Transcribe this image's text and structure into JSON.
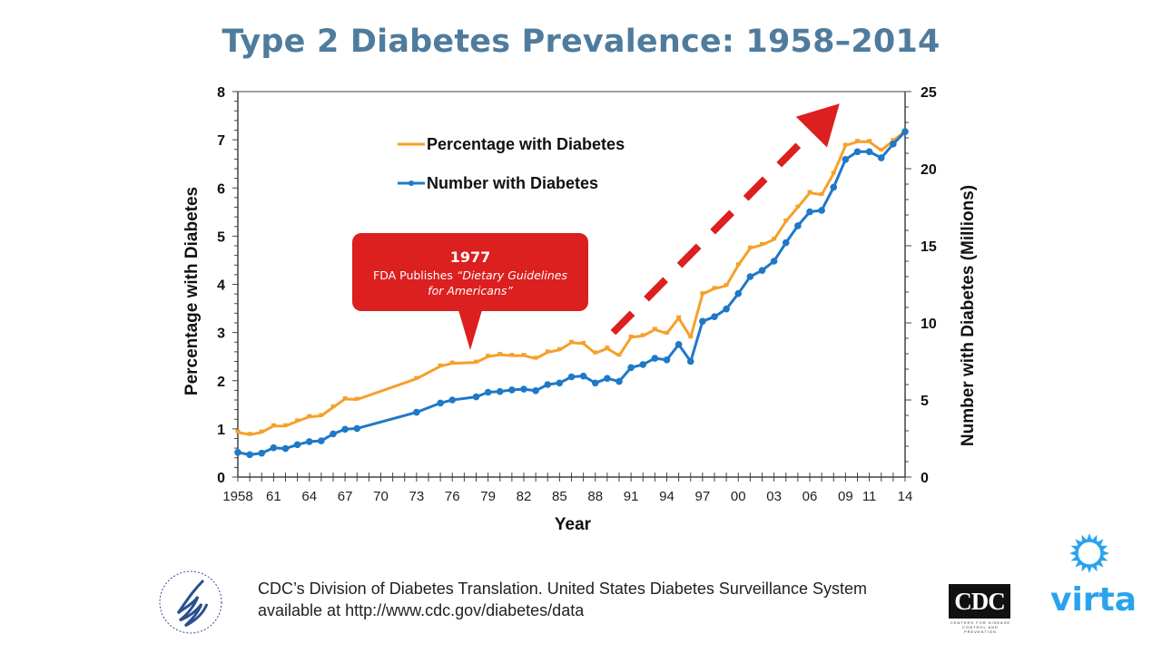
{
  "title": "Type 2 Diabetes Prevalence: 1958–2014",
  "callout": {
    "year": "1977",
    "text_plain": "FDA Publishes ",
    "text_italic_1": "“Dietary Guidelines",
    "text_italic_2": "for Americans”"
  },
  "citation": {
    "line1": "CDC’s Division of Diabetes Translation. United States Diabetes Surveillance System",
    "line2": "available at http://www.cdc.gov/diabetes/data"
  },
  "logos": {
    "hhs": "hhs-eagle-logo",
    "cdc": {
      "text": "CDC",
      "subtitle": "CENTERS FOR DISEASE CONTROL AND PREVENTION"
    },
    "virta": {
      "text": "virta",
      "color": "#29a3ee"
    }
  },
  "chart_data": {
    "type": "line",
    "title": "",
    "xlabel": "Year",
    "ylabel": "Percentage with Diabetes",
    "y2label": "Number with Diabetes (Millions)",
    "xlim": [
      1958,
      2014
    ],
    "ylim": [
      0,
      8
    ],
    "y2lim": [
      0,
      25
    ],
    "xtick_labels": [
      "1958",
      "61",
      "64",
      "67",
      "70",
      "73",
      "76",
      "79",
      "82",
      "85",
      "88",
      "91",
      "94",
      "97",
      "00",
      "03",
      "06",
      "09",
      "11",
      "14"
    ],
    "xtick_values": [
      1958,
      1961,
      1964,
      1967,
      1970,
      1973,
      1976,
      1979,
      1982,
      1985,
      1988,
      1991,
      1994,
      1997,
      2000,
      2003,
      2006,
      2009,
      2011,
      2014
    ],
    "ytick_labels": [
      "0",
      "1",
      "2",
      "3",
      "4",
      "5",
      "6",
      "7",
      "8"
    ],
    "y2tick_labels": [
      "0",
      "5",
      "10",
      "15",
      "20",
      "25"
    ],
    "legend": {
      "position": "top-left",
      "entries": [
        "Percentage with Diabetes",
        "Number with Diabetes"
      ]
    },
    "grid": false,
    "colors": {
      "percentage": "#f5a02a",
      "number": "#1f78c8",
      "arrow": "#dc1f1f"
    },
    "annotation": {
      "type": "dashed-arrow",
      "direction": "up-right",
      "from": [
        1989.5,
        3.0
      ],
      "to": [
        2008.5,
        7.75
      ],
      "meaning": "rising trend"
    },
    "x": [
      1958,
      1959,
      1960,
      1961,
      1962,
      1963,
      1964,
      1965,
      1966,
      1967,
      1968,
      1973,
      1975,
      1976,
      1978,
      1979,
      1980,
      1981,
      1982,
      1983,
      1984,
      1985,
      1986,
      1987,
      1988,
      1989,
      1990,
      1991,
      1992,
      1993,
      1994,
      1995,
      1996,
      1997,
      1998,
      1999,
      2000,
      2001,
      2002,
      2003,
      2004,
      2005,
      2006,
      2007,
      2008,
      2009,
      2010,
      2011,
      2012,
      2013,
      2014
    ],
    "series": [
      {
        "name": "Percentage with Diabetes",
        "axis": "left",
        "values": [
          0.93,
          0.88,
          0.93,
          1.06,
          1.06,
          1.16,
          1.25,
          1.27,
          1.45,
          1.62,
          1.61,
          2.04,
          2.3,
          2.36,
          2.38,
          2.5,
          2.54,
          2.52,
          2.52,
          2.46,
          2.59,
          2.64,
          2.79,
          2.77,
          2.57,
          2.67,
          2.52,
          2.9,
          2.93,
          3.06,
          2.98,
          3.3,
          2.9,
          3.8,
          3.91,
          3.97,
          4.4,
          4.75,
          4.82,
          4.93,
          5.31,
          5.6,
          5.9,
          5.86,
          6.3,
          6.88,
          6.96,
          6.96,
          6.78,
          6.98,
          7.18
        ]
      },
      {
        "name": "Number with Diabetes",
        "axis": "right",
        "values": [
          1.6,
          1.45,
          1.55,
          1.9,
          1.85,
          2.1,
          2.3,
          2.35,
          2.8,
          3.1,
          3.15,
          4.2,
          4.8,
          5.0,
          5.2,
          5.5,
          5.55,
          5.65,
          5.7,
          5.6,
          6.0,
          6.1,
          6.5,
          6.55,
          6.1,
          6.4,
          6.2,
          7.1,
          7.3,
          7.7,
          7.6,
          8.6,
          7.5,
          10.1,
          10.4,
          10.9,
          11.9,
          13.0,
          13.4,
          14.0,
          15.2,
          16.3,
          17.2,
          17.3,
          18.8,
          20.6,
          21.1,
          21.1,
          20.7,
          21.6,
          22.4
        ]
      }
    ]
  }
}
